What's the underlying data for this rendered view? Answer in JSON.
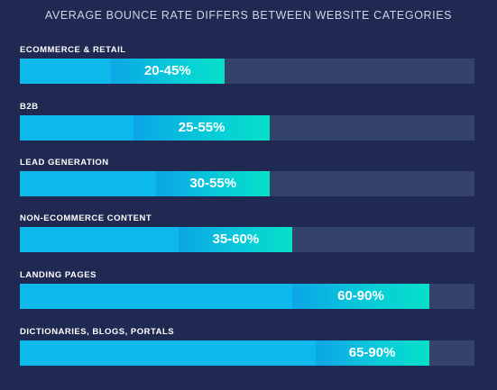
{
  "chart_data": {
    "type": "bar",
    "title": "AVERAGE BOUNCE RATE DIFFERS BETWEEN WEBSITE CATEGORIES",
    "xlim": [
      0,
      100
    ],
    "unit": "%",
    "grid": false,
    "categories": [
      "ECOMMERCE & RETAIL",
      "B2B",
      "LEAD GENERATION",
      "NON-ECOMMERCE CONTENT",
      "LANDING PAGES",
      "DICTIONARIES, BLOGS, PORTALS"
    ],
    "ranges": [
      {
        "low": 20,
        "high": 45,
        "label": "20-45%"
      },
      {
        "low": 25,
        "high": 55,
        "label": "25-55%"
      },
      {
        "low": 30,
        "high": 55,
        "label": "30-55%"
      },
      {
        "low": 35,
        "high": 60,
        "label": "35-60%"
      },
      {
        "low": 60,
        "high": 90,
        "label": "60-90%"
      },
      {
        "low": 65,
        "high": 90,
        "label": "65-90%"
      }
    ],
    "colors": {
      "background": "#1f2951",
      "track": "#334369",
      "bar_low": "#0db8ea",
      "bar_range_start": "#0ba6e6",
      "bar_range_end": "#05e0c8"
    }
  }
}
